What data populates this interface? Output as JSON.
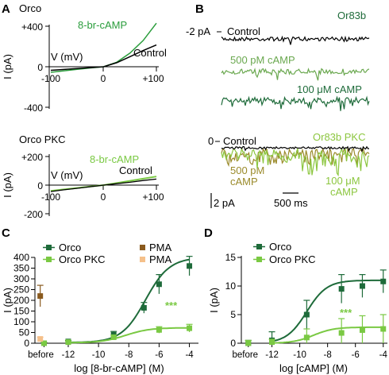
{
  "panels": {
    "A": {
      "letter": "A",
      "top": {
        "title": "Orco",
        "ylabel": "I (pA)",
        "xlabel": "V (mV)",
        "yticks": [
          "+400",
          "0",
          "-400"
        ],
        "xticks": [
          "-100",
          "0",
          "+100"
        ],
        "series": [
          {
            "name": "8-br-cAMP",
            "color": "#2a9d3c"
          },
          {
            "name": "Control",
            "color": "#000000"
          }
        ]
      },
      "bottom": {
        "title": "Orco PKC",
        "ylabel": "I (pA)",
        "xlabel": "V (mV)",
        "yticks": [
          "+200",
          "0",
          "-200"
        ],
        "xticks": [
          "-100",
          "0",
          "+100"
        ],
        "series": [
          {
            "name": "8-br-cAMP",
            "color": "#7ac943"
          },
          {
            "name": "Control",
            "color": "#000000"
          }
        ]
      }
    },
    "B": {
      "letter": "B",
      "top": {
        "title": "Or83b",
        "title_color": "#1e6b3a",
        "holding": "-2 pA",
        "traces": [
          {
            "name": "Control",
            "color": "#000000"
          },
          {
            "name": "500 pM cAMP",
            "color": "#6aa84f"
          },
          {
            "name": "100 μM cAMP",
            "color": "#1e6b3a"
          }
        ]
      },
      "bottom": {
        "title": "Or83b PKC",
        "title_color": "#8cc63f",
        "holding": "0",
        "traces": [
          {
            "name": "Control",
            "color": "#000000"
          },
          {
            "name_line1": "500 pM",
            "name_line2": "cAMP",
            "color": "#9a8a2a"
          },
          {
            "name_line1": "100 μM",
            "name_line2": "cAMP",
            "color": "#8cc63f"
          }
        ]
      },
      "scalebars": {
        "y": "2 pA",
        "x": "500 ms"
      }
    }
  },
  "chart_data": [
    {
      "panel": "A-top",
      "type": "line",
      "title": "Orco",
      "xlabel": "V (mV)",
      "ylabel": "I (pA)",
      "xlim": [
        -100,
        100
      ],
      "ylim": [
        -400,
        400
      ],
      "series": [
        {
          "name": "8-br-cAMP",
          "color": "#2a9d3c",
          "x": [
            -100,
            -75,
            -50,
            -25,
            0,
            25,
            50,
            75,
            100
          ],
          "y": [
            -55,
            -40,
            -26,
            -12,
            0,
            45,
            135,
            260,
            430
          ]
        },
        {
          "name": "Control",
          "color": "#000000",
          "x": [
            -100,
            -75,
            -50,
            -25,
            0,
            25,
            50,
            75,
            100
          ],
          "y": [
            -35,
            -27,
            -18,
            -9,
            0,
            40,
            100,
            160,
            215
          ]
        }
      ]
    },
    {
      "panel": "A-bottom",
      "type": "line",
      "title": "Orco PKC",
      "xlabel": "V (mV)",
      "ylabel": "I (pA)",
      "xlim": [
        -100,
        100
      ],
      "ylim": [
        -200,
        200
      ],
      "series": [
        {
          "name": "8-br-cAMP",
          "color": "#7ac943",
          "x": [
            -100,
            -75,
            -50,
            -25,
            0,
            25,
            50,
            75,
            100
          ],
          "y": [
            -40,
            -30,
            -20,
            -10,
            0,
            15,
            30,
            45,
            60
          ]
        },
        {
          "name": "Control",
          "color": "#000000",
          "x": [
            -100,
            -75,
            -50,
            -25,
            0,
            25,
            50,
            75,
            100
          ],
          "y": [
            -45,
            -33,
            -22,
            -11,
            0,
            10,
            20,
            32,
            42
          ]
        }
      ]
    },
    {
      "panel": "C",
      "letter": "C",
      "type": "scatter",
      "xlabel": "log [8-br-cAMP] (M)",
      "ylabel": "I (pA)",
      "ylim": [
        0,
        400
      ],
      "yticks": [
        0,
        50,
        100,
        150,
        200,
        250,
        300,
        350,
        400
      ],
      "xticks": [
        "before",
        "-12",
        "-10",
        "-8",
        "-6",
        "-4"
      ],
      "xtick_values": [
        null,
        -12,
        -10,
        -8,
        -6,
        -4
      ],
      "xlim": [
        -14.2,
        -3.4
      ],
      "significance": "***",
      "series": [
        {
          "name": "Orco",
          "color": "#1e6b3a",
          "marker": "square",
          "x": [
            -12,
            -9,
            -7,
            -6,
            -4
          ],
          "y": [
            8,
            40,
            165,
            275,
            360
          ],
          "err": [
            5,
            15,
            25,
            45,
            45
          ],
          "before": {
            "y": 0,
            "err": 4
          },
          "fit": {
            "bottom": 3,
            "top": 400,
            "ec50_log": -6.9,
            "hill": 0.55
          }
        },
        {
          "name": "Orco PKC",
          "color": "#7ac943",
          "marker": "square",
          "x": [
            -12,
            -9,
            -6,
            -4
          ],
          "y": [
            5,
            28,
            62,
            70
          ],
          "err": [
            4,
            10,
            15,
            18
          ],
          "before": {
            "y": 0,
            "err": 4
          },
          "fit": {
            "bottom": 2,
            "top": 72,
            "ec50_log": -8.2,
            "hill": 0.55
          }
        },
        {
          "name": "PMA",
          "color": "#8a5a1e",
          "marker": "square",
          "before": {
            "y": 220,
            "err": 50
          }
        },
        {
          "name": "PMA",
          "color": "#f5c08a",
          "marker": "square",
          "before": {
            "y": 20,
            "err": 8
          }
        }
      ]
    },
    {
      "panel": "D",
      "letter": "D",
      "type": "scatter",
      "xlabel": "log [cAMP] (M)",
      "ylabel": "I (pA)",
      "ylim": [
        0,
        15
      ],
      "yticks": [
        0,
        5,
        10,
        15
      ],
      "xticks": [
        "before",
        "-12",
        "-10",
        "-8",
        "-6",
        "-4"
      ],
      "xtick_values": [
        null,
        -12,
        -10,
        -8,
        -6,
        -4
      ],
      "xlim": [
        -14.2,
        -3.7
      ],
      "significance": "***",
      "series": [
        {
          "name": "Orco",
          "color": "#1e6b3a",
          "marker": "square",
          "x": [
            -12,
            -9.5,
            -7,
            -5.5,
            -4
          ],
          "y": [
            0.5,
            5,
            9.5,
            10,
            10.8
          ],
          "err": [
            1.5,
            2.5,
            2.5,
            2,
            2
          ],
          "before": {
            "y": 0,
            "err": 0.5
          },
          "fit": {
            "bottom": 0,
            "top": 11,
            "ec50_log": -9.5,
            "hill": 0.6
          }
        },
        {
          "name": "Orco PKC",
          "color": "#7ac943",
          "marker": "square",
          "x": [
            -12,
            -9.5,
            -7,
            -5.5,
            -4
          ],
          "y": [
            0.2,
            1,
            1.8,
            2.3,
            2.5
          ],
          "err": [
            0.5,
            1.5,
            2.5,
            2.5,
            2.5
          ],
          "before": {
            "y": 0,
            "err": 0.5
          },
          "fit": {
            "bottom": 0,
            "top": 2.8,
            "ec50_log": -9,
            "hill": 0.6
          }
        }
      ]
    }
  ]
}
